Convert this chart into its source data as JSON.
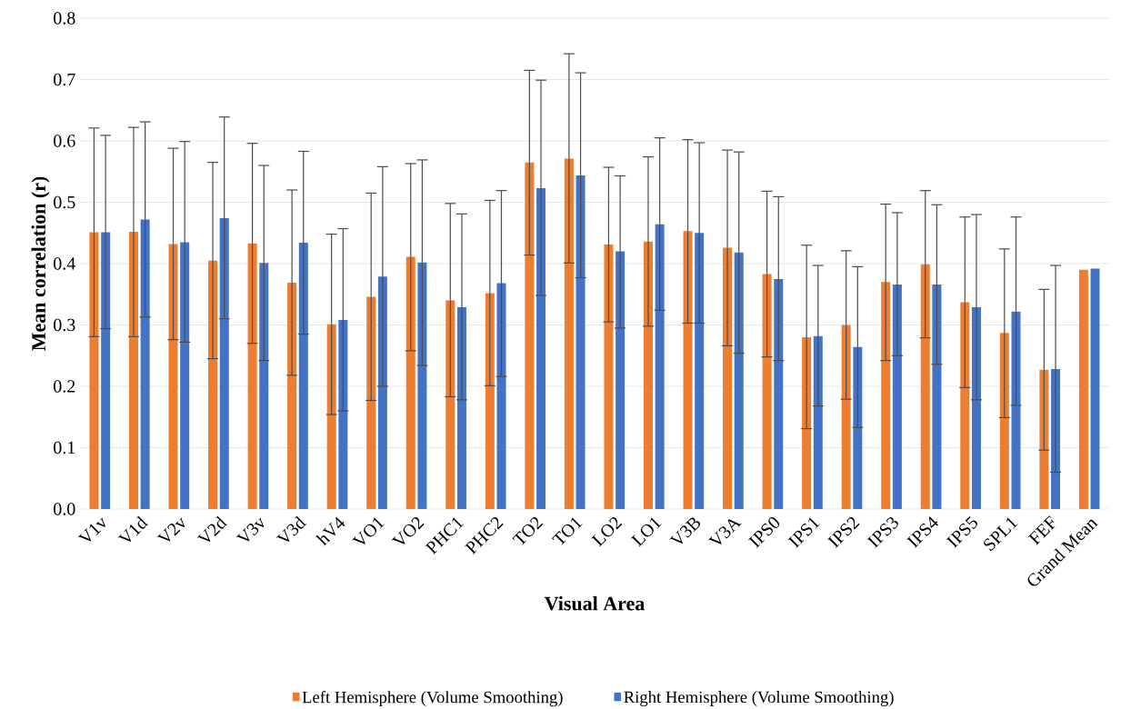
{
  "chart_data": {
    "type": "bar",
    "xlabel": "Visual Area",
    "ylabel": "Mean correlation (r)",
    "categories": [
      "V1v",
      "V1d",
      "V2v",
      "V2d",
      "V3v",
      "V3d",
      "hV4",
      "VO1",
      "VO2",
      "PHC1",
      "PHC2",
      "TO2",
      "TO1",
      "LO2",
      "LO1",
      "V3B",
      "V3A",
      "IPS0",
      "IPS1",
      "IPS2",
      "IPS3",
      "IPS4",
      "IPS5",
      "SPL1",
      "FEF",
      "Grand Mean"
    ],
    "series": [
      {
        "name": "Left Hemisphere (Volume Smoothing)",
        "color": "#ed7d31",
        "values": [
          0.451,
          0.452,
          0.432,
          0.405,
          0.433,
          0.369,
          0.301,
          0.346,
          0.411,
          0.34,
          0.352,
          0.565,
          0.571,
          0.431,
          0.436,
          0.453,
          0.426,
          0.383,
          0.28,
          0.3,
          0.37,
          0.399,
          0.337,
          0.287,
          0.227,
          0.39
        ],
        "errors": [
          [
            0.281,
            0.621
          ],
          [
            0.281,
            0.622
          ],
          [
            0.276,
            0.588
          ],
          [
            0.245,
            0.565
          ],
          [
            0.27,
            0.596
          ],
          [
            0.218,
            0.52
          ],
          [
            0.154,
            0.448
          ],
          [
            0.177,
            0.515
          ],
          [
            0.258,
            0.563
          ],
          [
            0.183,
            0.498
          ],
          [
            0.201,
            0.503
          ],
          [
            0.414,
            0.715
          ],
          [
            0.401,
            0.742
          ],
          [
            0.305,
            0.557
          ],
          [
            0.298,
            0.574
          ],
          [
            0.303,
            0.602
          ],
          [
            0.266,
            0.585
          ],
          [
            0.248,
            0.518
          ],
          [
            0.131,
            0.43
          ],
          [
            0.179,
            0.421
          ],
          [
            0.242,
            0.497
          ],
          [
            0.279,
            0.519
          ],
          [
            0.198,
            0.476
          ],
          [
            0.149,
            0.424
          ],
          [
            0.096,
            0.358
          ],
          null
        ]
      },
      {
        "name": "Right Hemisphere (Volume Smoothing)",
        "color": "#4472c4",
        "values": [
          0.451,
          0.472,
          0.435,
          0.474,
          0.401,
          0.434,
          0.308,
          0.379,
          0.402,
          0.329,
          0.368,
          0.523,
          0.544,
          0.42,
          0.464,
          0.45,
          0.418,
          0.375,
          0.282,
          0.264,
          0.366,
          0.366,
          0.329,
          0.322,
          0.228,
          0.392
        ],
        "errors": [
          [
            0.294,
            0.609
          ],
          [
            0.313,
            0.631
          ],
          [
            0.272,
            0.599
          ],
          [
            0.31,
            0.639
          ],
          [
            0.242,
            0.56
          ],
          [
            0.285,
            0.583
          ],
          [
            0.16,
            0.457
          ],
          [
            0.2,
            0.558
          ],
          [
            0.234,
            0.569
          ],
          [
            0.178,
            0.481
          ],
          [
            0.216,
            0.519
          ],
          [
            0.348,
            0.699
          ],
          [
            0.377,
            0.711
          ],
          [
            0.295,
            0.543
          ],
          [
            0.324,
            0.605
          ],
          [
            0.303,
            0.597
          ],
          [
            0.254,
            0.582
          ],
          [
            0.242,
            0.509
          ],
          [
            0.168,
            0.397
          ],
          [
            0.133,
            0.395
          ],
          [
            0.25,
            0.483
          ],
          [
            0.236,
            0.496
          ],
          [
            0.178,
            0.48
          ],
          [
            0.169,
            0.476
          ],
          [
            0.06,
            0.397
          ],
          null
        ]
      }
    ],
    "ylim": [
      0,
      0.8
    ],
    "yticks": [
      {
        "value": 0,
        "label": "0.0"
      },
      0.1,
      0.2,
      0.3,
      0.4,
      0.5,
      0.6,
      0.7,
      0.8
    ],
    "grid": "y",
    "legend": "bottom"
  }
}
